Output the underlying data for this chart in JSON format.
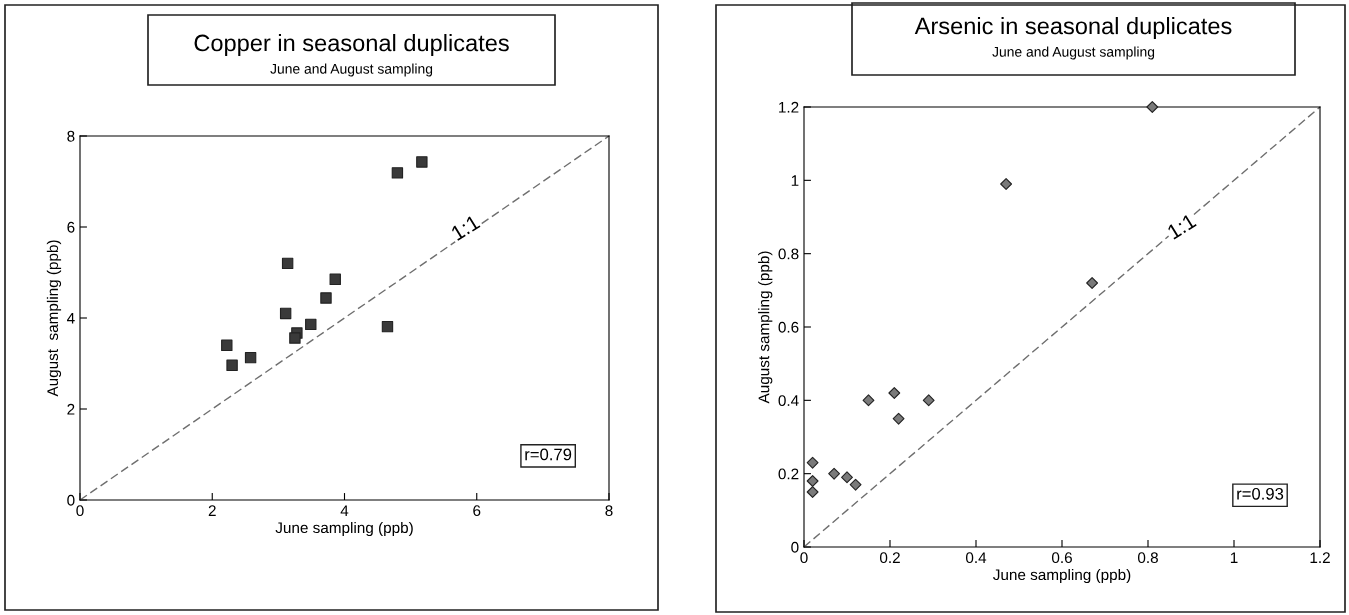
{
  "chart_data": [
    {
      "type": "scatter",
      "title": "Copper in seasonal duplicates",
      "subtitle": "June and August sampling",
      "xlabel": "June sampling (ppb)",
      "ylabel": "August  sampling (ppb)",
      "legend": false,
      "xlim": [
        0,
        8
      ],
      "xticks": [
        0,
        2,
        4,
        6,
        8
      ],
      "ylim": [
        0,
        8
      ],
      "yticks": [
        0,
        2,
        4,
        6,
        8
      ],
      "series": [
        {
          "marker": "square",
          "color": "#3a3a3a",
          "x": [
            5.17,
            4.8,
            3.14,
            3.86,
            3.72,
            3.11,
            3.49,
            4.65,
            3.28,
            3.25,
            2.22,
            2.58,
            2.3
          ],
          "values": [
            7.43,
            7.19,
            5.2,
            4.85,
            4.44,
            4.1,
            3.86,
            3.81,
            3.67,
            3.56,
            3.4,
            3.13,
            2.96
          ]
        },
        {
          "type": "line",
          "marker": "none",
          "color": "#6e6e6e",
          "line_style": "dashed",
          "x": [
            0,
            8
          ],
          "values": [
            0,
            8
          ]
        }
      ],
      "annotations": [
        {
          "text": "1:1",
          "x": 5.84,
          "y": 5.95
        },
        "r=0.79"
      ]
    },
    {
      "type": "scatter",
      "title": "Arsenic in seasonal duplicates",
      "subtitle": "June and August sampling",
      "xlabel": "June sampling (ppb)",
      "ylabel": "August sampling (ppb)",
      "legend": false,
      "xlim": [
        0,
        1.2
      ],
      "xticks": [
        0,
        0.2,
        0.4,
        0.6,
        0.8,
        1,
        1.2
      ],
      "ylim": [
        0,
        1.2
      ],
      "yticks": [
        0,
        0.2,
        0.4,
        0.6,
        0.8,
        1,
        1.2
      ],
      "series": [
        {
          "marker": "diamond",
          "color": "#7a7a7a",
          "x": [
            0.81,
            0.47,
            0.67,
            0.15,
            0.21,
            0.29,
            0.22,
            0.02,
            0.02,
            0.02,
            0.07,
            0.1,
            0.12
          ],
          "values": [
            1.2,
            0.99,
            0.72,
            0.4,
            0.42,
            0.4,
            0.35,
            0.23,
            0.18,
            0.15,
            0.2,
            0.19,
            0.17
          ]
        },
        {
          "type": "line",
          "marker": "none",
          "color": "#6e6e6e",
          "line_style": "dashed",
          "x": [
            0,
            1.2
          ],
          "values": [
            0,
            1.2
          ]
        }
      ],
      "annotations": [
        {
          "text": "1:1",
          "x": 0.88,
          "y": 0.87
        },
        "r=0.93"
      ]
    }
  ]
}
